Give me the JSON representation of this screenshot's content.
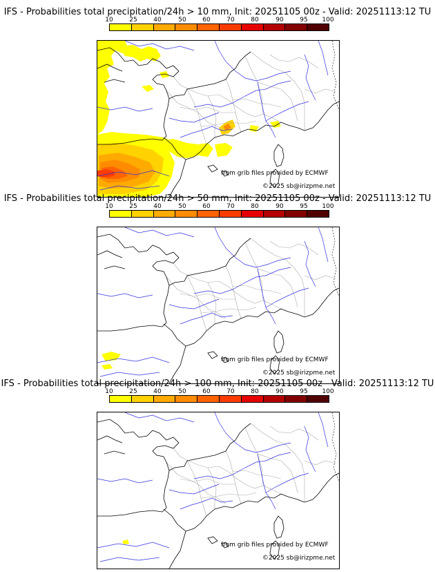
{
  "colorbar": {
    "ticks": [
      "10",
      "25",
      "40",
      "50",
      "60",
      "70",
      "80",
      "90",
      "95",
      "100"
    ],
    "colors": [
      "#ffff00",
      "#ffd200",
      "#ffaa00",
      "#ff8c00",
      "#ff6400",
      "#ff3c00",
      "#e60000",
      "#b40000",
      "#820000",
      "#500000"
    ]
  },
  "panels": [
    {
      "title": "IFS - Probabilities total precipitation/24h > 10 mm, Init: 20251105 00z - Valid: 20251113:12 TU",
      "credit_data": "from grib files provided by ECMWF",
      "credit_copyright": "©2025 sb@irizpme.net",
      "threshold_mm": 10
    },
    {
      "title": "IFS - Probabilities total precipitation/24h > 50 mm, Init: 20251105 00z - Valid: 20251113:12 TU",
      "credit_data": "from grib files provided by ECMWF",
      "credit_copyright": "©2025 sb@irizpme.net",
      "threshold_mm": 50
    },
    {
      "title": "IFS - Probabilities total precipitation/24h > 100 mm, Init: 20251105 00z - Valid: 20251113:12 TU",
      "credit_data": "from grib files provided by ECMWF",
      "credit_copyright": "©2025 sb@irizpme.net",
      "threshold_mm": 100
    }
  ]
}
